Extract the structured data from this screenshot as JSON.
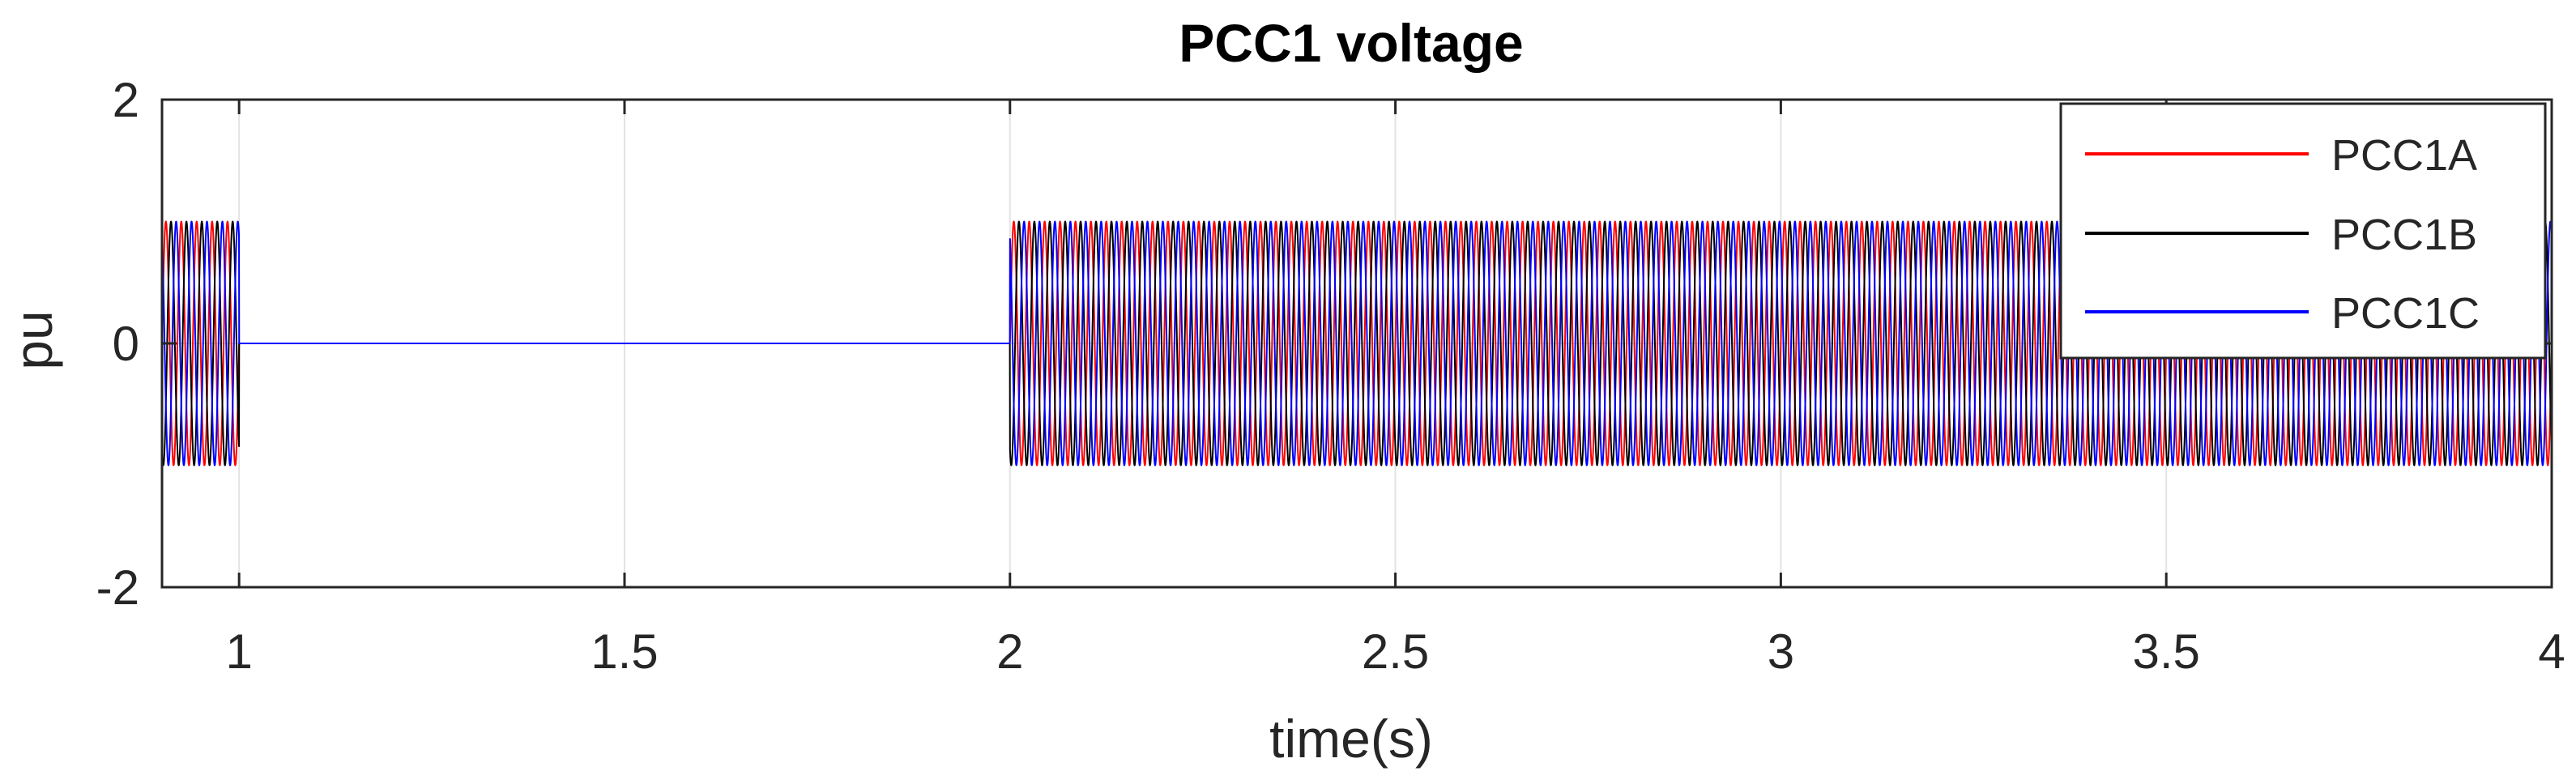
{
  "chart_data": {
    "type": "line",
    "title": "PCC1 voltage",
    "xlabel": "time(s)",
    "ylabel": "pu",
    "xlim": [
      0.9,
      4
    ],
    "ylim": [
      -2,
      2
    ],
    "xticks": [
      1,
      1.5,
      2,
      2.5,
      3,
      3.5,
      4
    ],
    "xtick_labels": [
      "1",
      "1.5",
      "2",
      "2.5",
      "3",
      "3.5",
      "4"
    ],
    "yticks": [
      -2,
      0,
      2
    ],
    "ytick_labels": [
      "-2",
      "0",
      "2"
    ],
    "grid": true,
    "legend_position": "top-right",
    "frequency_hz": 50,
    "amplitude": 1,
    "outage_interval": [
      1,
      2
    ],
    "series": [
      {
        "name": "PCC1A",
        "color": "#ff0000",
        "phase_deg": 0
      },
      {
        "name": "PCC1B",
        "color": "#000000",
        "phase_deg": -120
      },
      {
        "name": "PCC1C",
        "color": "#0000ff",
        "phase_deg": 120
      }
    ]
  }
}
